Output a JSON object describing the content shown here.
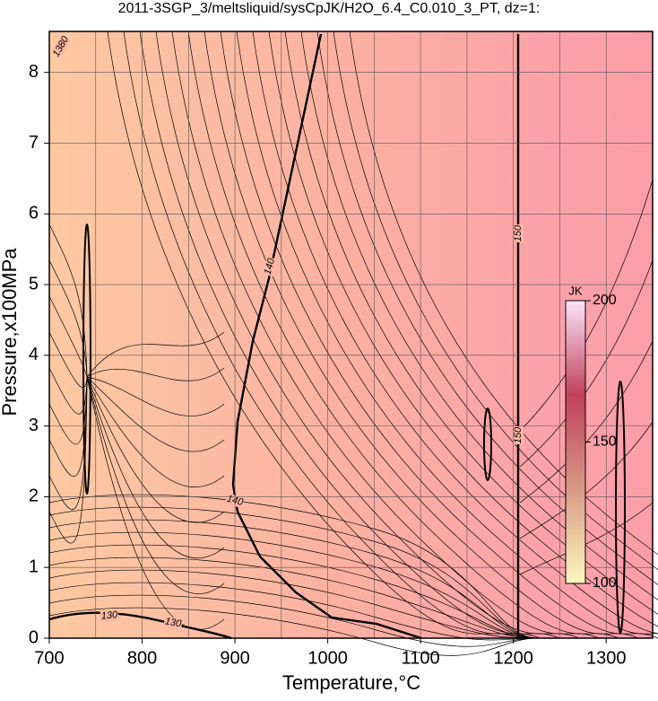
{
  "chart_data": {
    "type": "contour",
    "title": "2011-3SGP_3/meltsliquid/sysCpJK/H2O_6.4_C0.010_3_PT, dz=1:",
    "x_label": "Temperature,°C",
    "y_label": "Pressure,x100MPa",
    "xlim": [
      700,
      1350
    ],
    "ylim": [
      0,
      8.58
    ],
    "xticks": [
      700,
      800,
      900,
      1000,
      1100,
      1200,
      1300
    ],
    "yticks": [
      0,
      1,
      2,
      3,
      4,
      5,
      6,
      7,
      8
    ],
    "xgrid": [
      750,
      850,
      950,
      1050,
      1150,
      1250
    ],
    "grid": true,
    "levels": [
      130,
      140,
      150
    ],
    "annotations": [
      "1380"
    ],
    "colorbar": {
      "label": "JK",
      "lim": [
        100,
        200
      ],
      "ticks": [
        100,
        150,
        200
      ],
      "colors": [
        "#fcf8c0",
        "#d89a84",
        "#c0405c",
        "#fce4f8"
      ]
    }
  }
}
